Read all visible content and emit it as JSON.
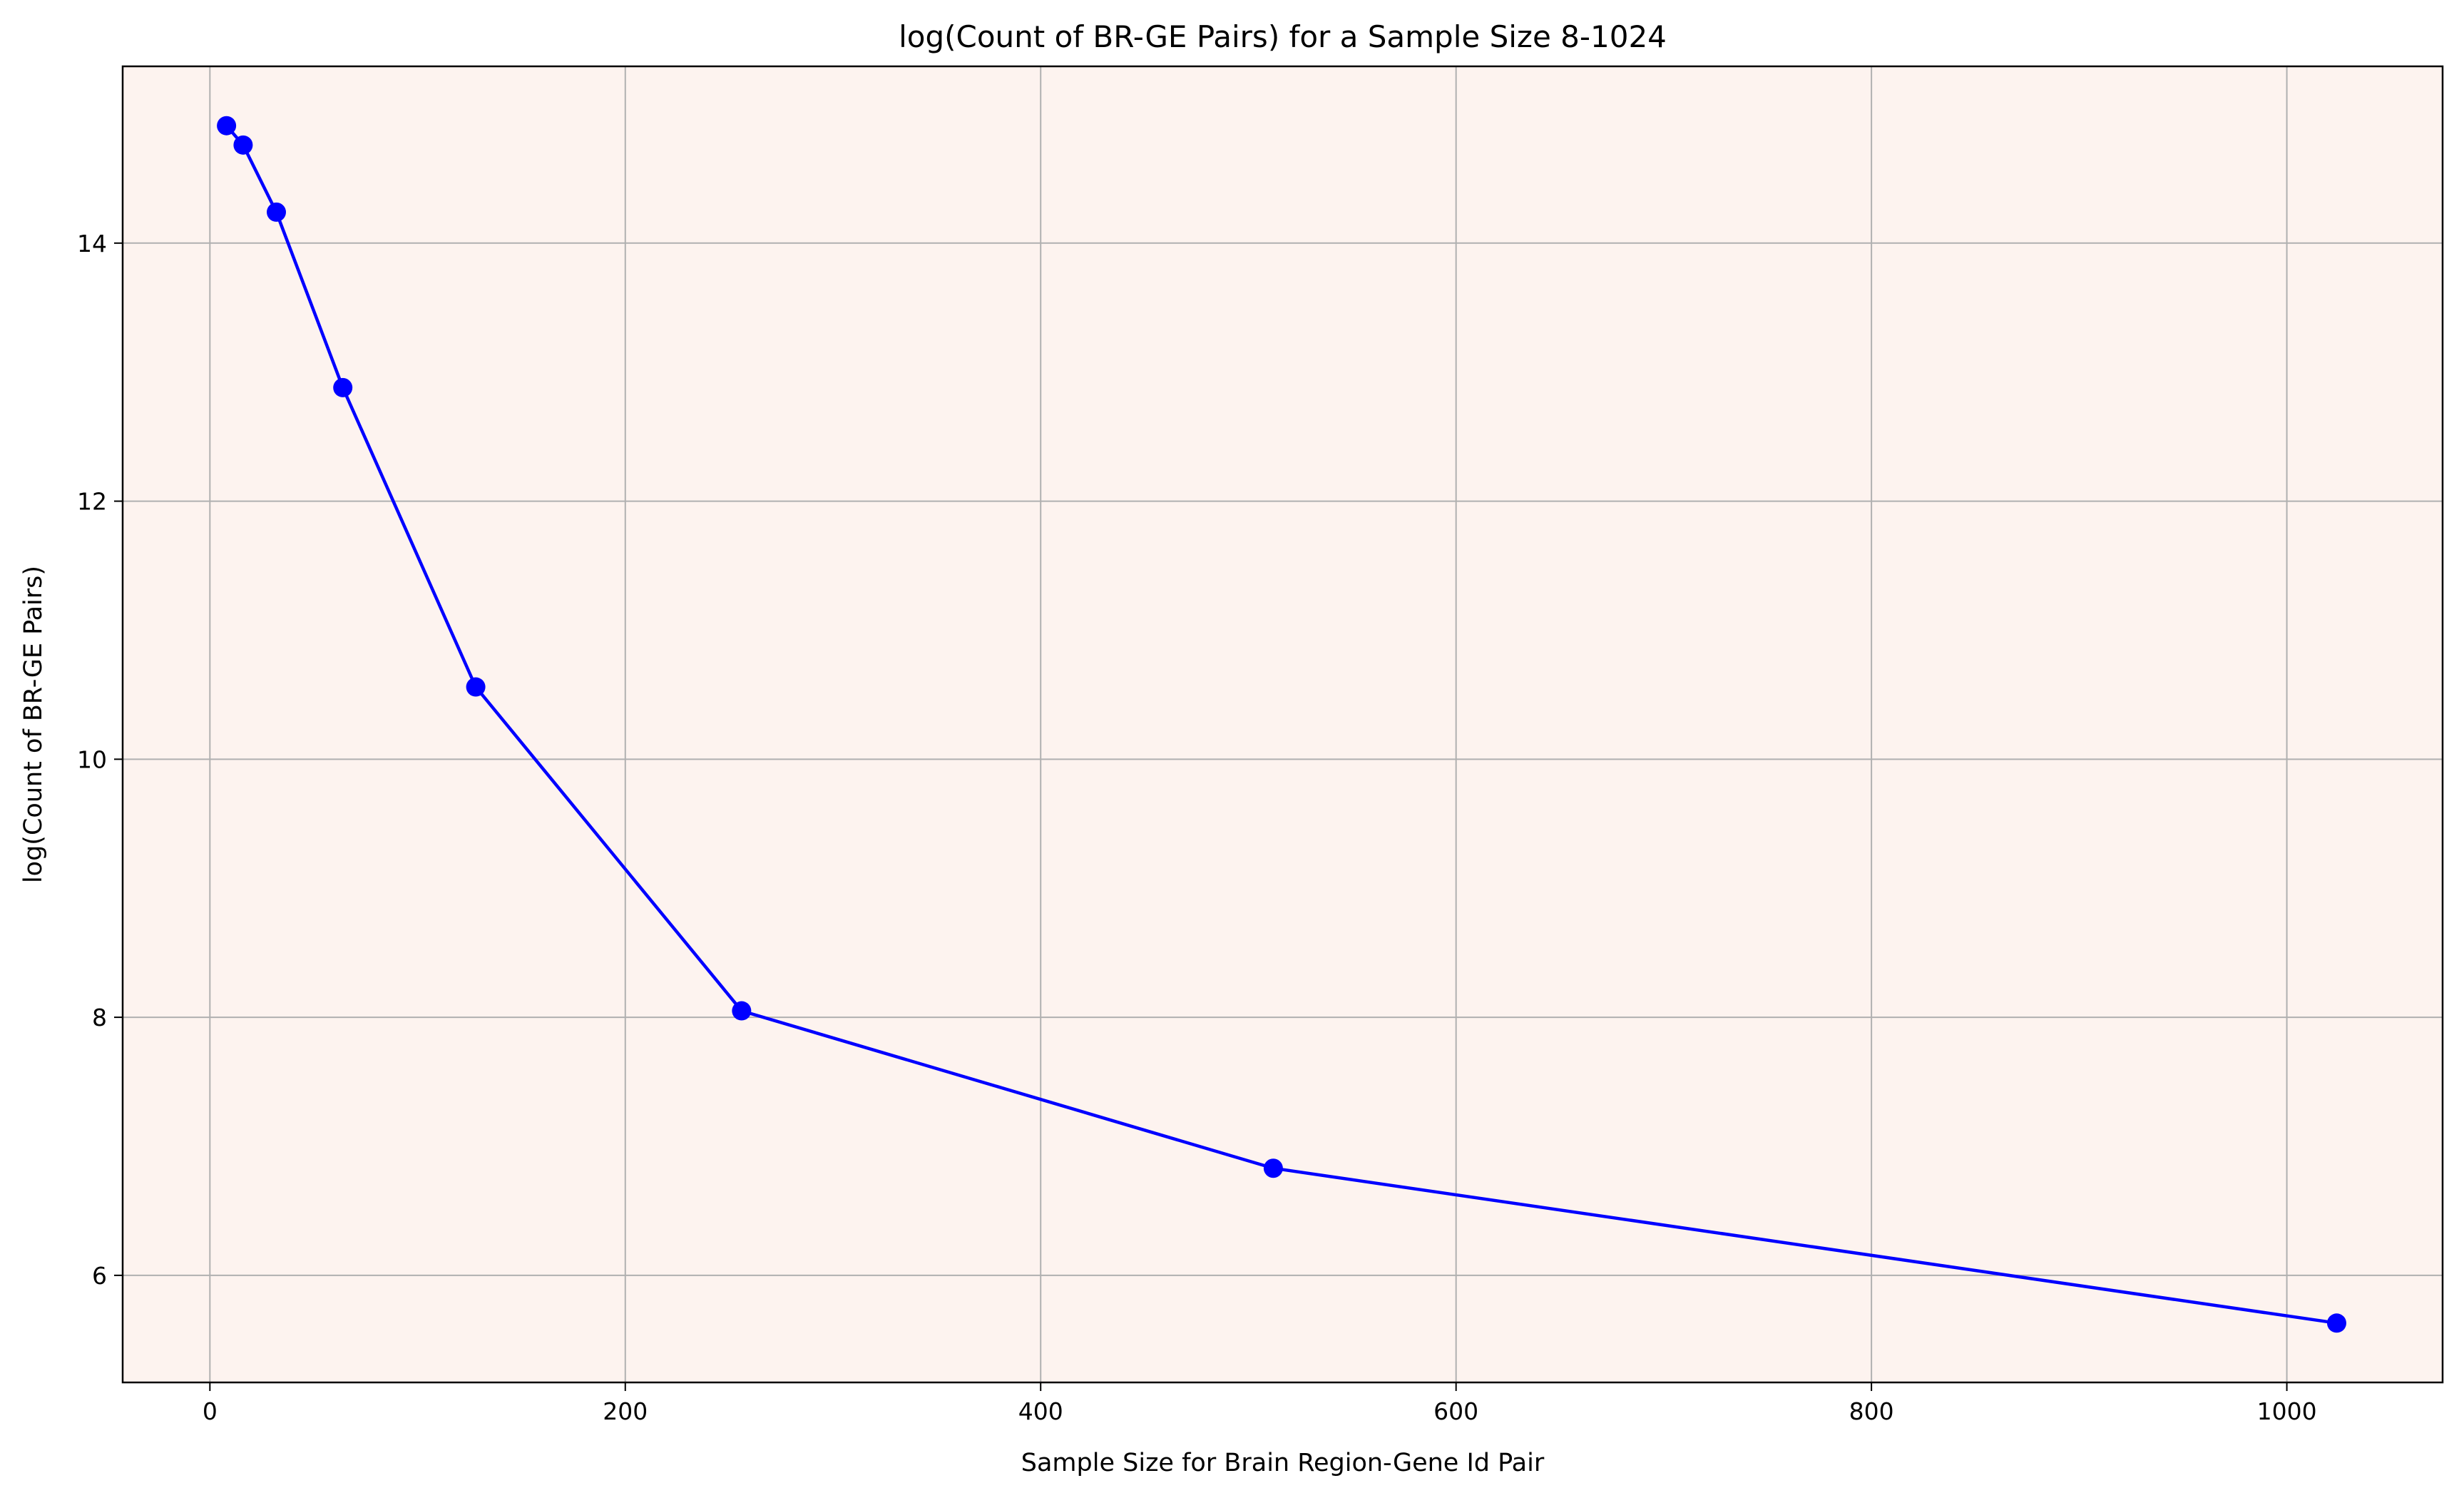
{
  "chart_data": {
    "type": "line",
    "title": "log(Count of BR-GE Pairs) for a Sample Size 8-1024",
    "xlabel": "Sample Size for Brain Region-Gene Id Pair",
    "ylabel": "log(Count of BR-GE Pairs)",
    "xlim": [
      -42,
      1075
    ],
    "ylim": [
      5.17,
      15.37
    ],
    "x_ticks": [
      0,
      200,
      400,
      600,
      800,
      1000
    ],
    "y_ticks": [
      6,
      8,
      10,
      12,
      14
    ],
    "grid": true,
    "background_color": "#fdf3ef",
    "series": [
      {
        "color": "#0000ff",
        "marker": "circle",
        "x": [
          8,
          16,
          32,
          64,
          128,
          256,
          512,
          1024
        ],
        "y": [
          14.91,
          14.76,
          14.24,
          12.88,
          10.56,
          8.05,
          6.83,
          5.63
        ]
      }
    ]
  }
}
